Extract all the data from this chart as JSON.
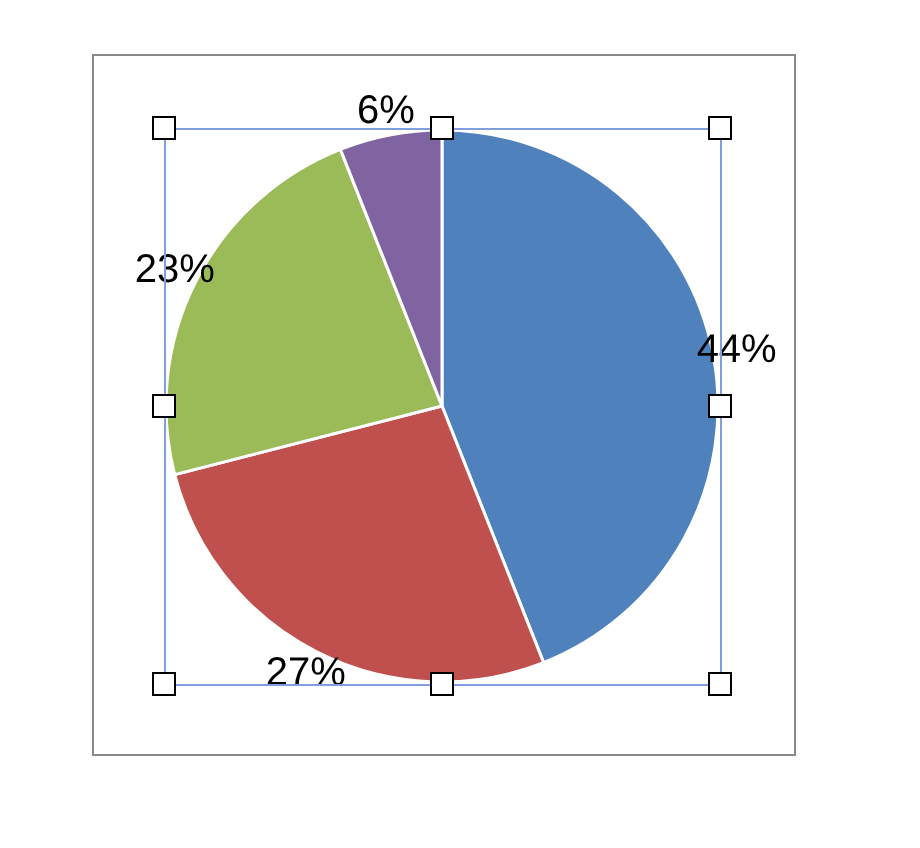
{
  "chart_data": {
    "type": "pie",
    "categories": [
      null,
      null,
      null,
      null
    ],
    "values": [
      44,
      27,
      23,
      6
    ],
    "colors": [
      "#4f81bd",
      "#c0504d",
      "#9bbb59",
      "#8064a2"
    ],
    "value_labels": [
      "44%",
      "27%",
      "23%",
      "6%"
    ]
  }
}
